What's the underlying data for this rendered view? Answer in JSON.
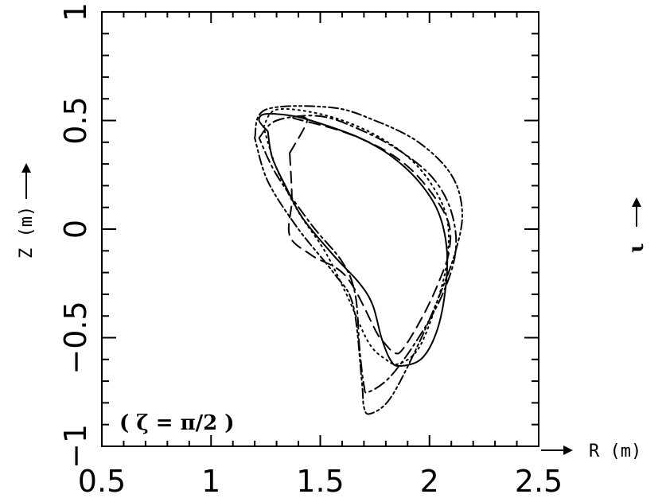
{
  "chart_data": {
    "type": "line",
    "title": "",
    "xlabel": "R  (m)",
    "ylabel": "Z  (m)",
    "side_label": "ι",
    "annotation": "( ζ = π/2 )",
    "xlim": [
      0.5,
      2.5
    ],
    "ylim": [
      -1,
      1
    ],
    "x_ticks": [
      0.5,
      1,
      1.5,
      2,
      2.5
    ],
    "x_tick_labels": [
      "0.5",
      "1",
      "1.5",
      "2",
      "2.5"
    ],
    "y_ticks": [
      -1,
      -0.5,
      0,
      0.5,
      1
    ],
    "y_tick_labels": [
      "−1",
      "−0.5",
      "0",
      "0.5",
      "1"
    ],
    "grid": false,
    "legend": "none",
    "series": [
      {
        "style": "solid",
        "x": [
          1.26,
          1.22,
          1.25,
          1.38,
          1.52,
          1.68,
          1.82,
          1.95,
          2.04,
          2.08,
          2.07,
          2.03,
          1.96,
          1.86,
          1.82,
          1.78,
          1.74,
          1.68,
          1.56,
          1.42,
          1.34,
          1.28,
          1.26
        ],
        "y": [
          0.45,
          0.5,
          0.53,
          0.52,
          0.48,
          0.42,
          0.34,
          0.22,
          0.08,
          -0.1,
          -0.3,
          -0.48,
          -0.6,
          -0.63,
          -0.6,
          -0.5,
          -0.35,
          -0.25,
          -0.12,
          0.05,
          0.2,
          0.33,
          0.45
        ]
      },
      {
        "style": "dashed",
        "x": [
          1.36,
          1.44,
          1.38,
          1.6,
          1.8,
          1.95,
          2.08,
          2.09,
          2.04,
          1.97,
          1.88,
          1.84,
          1.79,
          1.76,
          1.62,
          1.46,
          1.36,
          1.37,
          1.36
        ],
        "y": [
          0.35,
          0.5,
          0.51,
          0.45,
          0.36,
          0.24,
          0.05,
          -0.1,
          -0.25,
          -0.4,
          -0.55,
          -0.57,
          -0.52,
          -0.48,
          -0.22,
          -0.12,
          -0.03,
          0.14,
          0.35
        ]
      },
      {
        "style": "dash-dot",
        "x": [
          1.22,
          1.3,
          1.5,
          1.7,
          1.88,
          2.02,
          2.1,
          2.12,
          2.06,
          1.95,
          1.82,
          1.72,
          1.7,
          1.68,
          1.66,
          1.6,
          1.46,
          1.3,
          1.22
        ],
        "y": [
          0.42,
          0.5,
          0.52,
          0.45,
          0.35,
          0.23,
          0.08,
          -0.1,
          -0.3,
          -0.5,
          -0.68,
          -0.75,
          -0.72,
          -0.55,
          -0.3,
          -0.15,
          0.02,
          0.25,
          0.42
        ]
      },
      {
        "style": "dash-dot-dot",
        "x": [
          1.2,
          1.25,
          1.55,
          1.75,
          1.95,
          2.1,
          2.15,
          2.12,
          2.04,
          1.94,
          1.82,
          1.73,
          1.7,
          1.69,
          1.65,
          1.56,
          1.4,
          1.26,
          1.2
        ],
        "y": [
          0.42,
          0.55,
          0.56,
          0.5,
          0.4,
          0.25,
          0.08,
          -0.1,
          -0.32,
          -0.55,
          -0.78,
          -0.85,
          -0.82,
          -0.7,
          -0.35,
          -0.2,
          0.0,
          0.22,
          0.42
        ]
      },
      {
        "style": "dotted",
        "x": [
          1.24,
          1.3,
          1.5,
          1.7,
          1.88,
          2.0,
          2.08,
          2.08,
          2.03,
          1.95,
          1.86,
          1.8,
          1.72,
          1.62,
          1.52,
          1.4,
          1.3,
          1.24
        ],
        "y": [
          0.47,
          0.55,
          0.53,
          0.46,
          0.35,
          0.22,
          0.05,
          -0.15,
          -0.35,
          -0.55,
          -0.62,
          -0.6,
          -0.52,
          -0.3,
          -0.1,
          0.08,
          0.28,
          0.47
        ]
      }
    ]
  }
}
